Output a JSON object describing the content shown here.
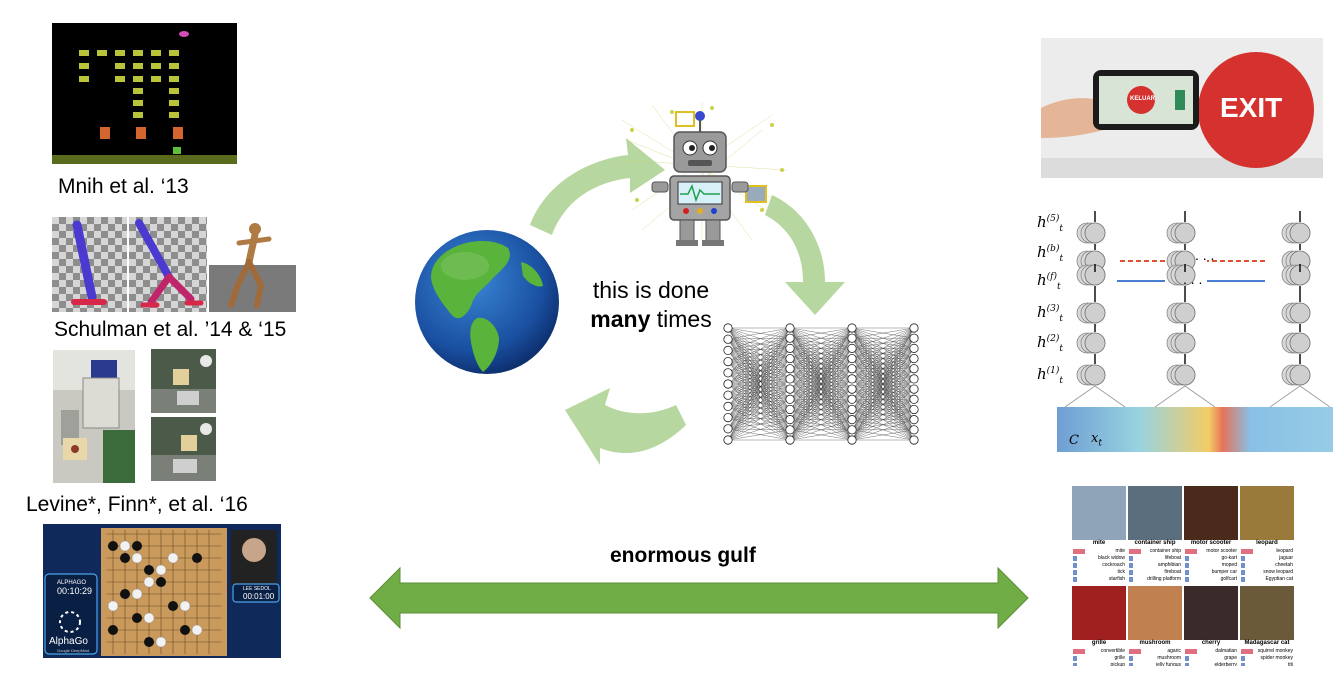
{
  "captions": {
    "mnih": "Mnih et al. ‘13",
    "schulman": "Schulman et al. ’14 & ‘15",
    "levine": "Levine*, Finn*, et al. ‘16"
  },
  "center": {
    "line1": "this is done",
    "line2_bold": "many",
    "line2_rest": " times"
  },
  "gulf": {
    "label": "enormous gulf"
  },
  "alphago": {
    "logo": "AlphaGo",
    "sub": "Google DeepMind",
    "left_name": "ALPHAGO",
    "left_time": "00:10:29",
    "right_name": "LEE SEDOL",
    "right_time": "00:01:00"
  },
  "exit_sign": {
    "sign": "EXIT",
    "phone": "KELUAR"
  },
  "rnn_labels": {
    "h5": "h",
    "h5_sup": "(5)",
    "hb": "h",
    "hb_sup": "(b)",
    "hf": "h",
    "hf_sup": "(f)",
    "h3": "h",
    "h3_sup": "(3)",
    "h2": "h",
    "h2_sup": "(2)",
    "h1": "h",
    "h1_sup": "(1)",
    "sub": "t",
    "c_label": "C",
    "x_label": "x",
    "dots": ". . ."
  },
  "imagenet": {
    "titles": [
      "mite",
      "container ship",
      "motor scooter",
      "leopard",
      "grille",
      "mushroom",
      "cherry",
      "Madagascar cat"
    ],
    "lists": [
      [
        "mite",
        "black widow",
        "cockroach",
        "tick",
        "starfish"
      ],
      [
        "container ship",
        "lifeboat",
        "amphibian",
        "fireboat",
        "drilling platform"
      ],
      [
        "motor scooter",
        "go-kart",
        "moped",
        "bumper car",
        "golfcart"
      ],
      [
        "leopard",
        "jaguar",
        "cheetah",
        "snow leopard",
        "Egyptian cat"
      ],
      [
        "convertible",
        "grille",
        "pickup",
        "beach wagon",
        "fire engine"
      ],
      [
        "agaric",
        "mushroom",
        "jelly fungus",
        "gill fungus",
        "dead-man's-fingers"
      ],
      [
        "dalmatian",
        "grape",
        "elderberry",
        "ffordshire bullterrier",
        "currant"
      ],
      [
        "squirrel monkey",
        "spider monkey",
        "titi",
        "indri",
        "howler monkey"
      ]
    ]
  }
}
